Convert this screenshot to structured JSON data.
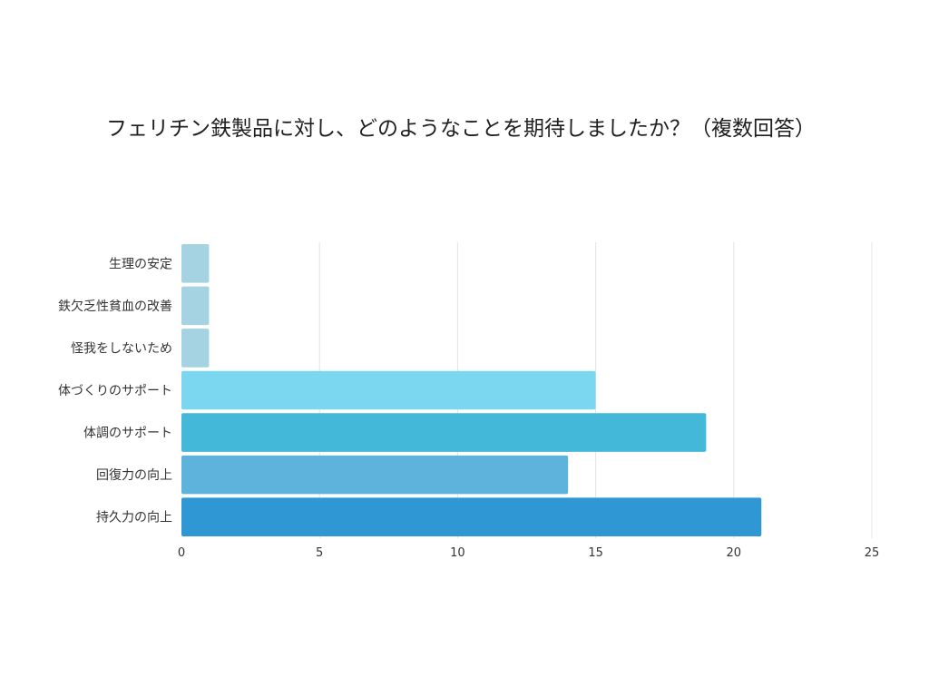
{
  "chart_data": {
    "type": "bar",
    "orientation": "horizontal",
    "title": "フェリチン鉄製品に対し、どのようなことを期待しましたか？（複数回答）",
    "categories": [
      "生理の安定",
      "鉄欠乏性貧血の改善",
      "怪我をしないため",
      "体づくりのサポート",
      "体調のサポート",
      "回復力の向上",
      "持久力の向上"
    ],
    "values": [
      1,
      1,
      1,
      15,
      19,
      14,
      21
    ],
    "colors": [
      "#a6d3e1",
      "#a6d3e1",
      "#a6d3e1",
      "#7ad7ef",
      "#44b8d8",
      "#5eb3dd",
      "#2f98d4"
    ],
    "xlim": [
      0,
      25
    ],
    "xticks": [
      0,
      5,
      10,
      15,
      20,
      25
    ],
    "xlabel": "",
    "ylabel": "",
    "grid": "vertical"
  }
}
